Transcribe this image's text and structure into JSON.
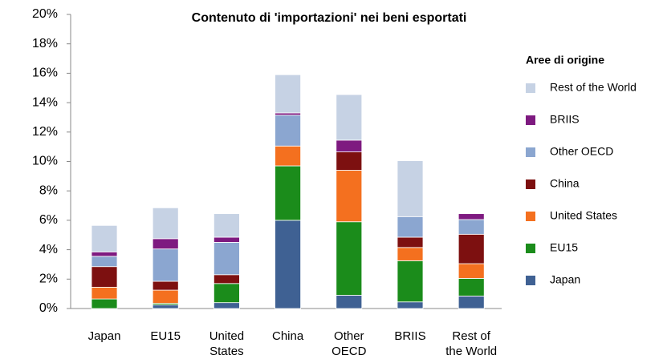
{
  "chart_data": {
    "type": "stacked_bar",
    "title": "Contenuto di 'importazioni' nei beni esportati",
    "legend_title": "Aree di origine",
    "categories": [
      "Japan",
      "EU15",
      "United States",
      "China",
      "Other OECD",
      "BRIIS",
      "Rest of the World"
    ],
    "series": [
      {
        "name": "Japan",
        "color": "#3f6193",
        "values": [
          0,
          0.25,
          0.4,
          6.0,
          0.9,
          0.45,
          0.85
        ]
      },
      {
        "name": "EU15",
        "color": "#1b8c1b",
        "values": [
          0.65,
          0.1,
          1.3,
          3.7,
          5.0,
          2.8,
          1.2
        ]
      },
      {
        "name": "United States",
        "color": "#f4701f",
        "values": [
          0.8,
          0.9,
          0,
          1.35,
          3.5,
          0.9,
          1.0
        ]
      },
      {
        "name": "China",
        "color": "#7d1010",
        "values": [
          1.4,
          0.6,
          0.6,
          0,
          1.25,
          0.7,
          2.0
        ]
      },
      {
        "name": "Other OECD",
        "color": "#8ba6d0",
        "values": [
          0.7,
          2.2,
          2.2,
          2.1,
          0,
          1.4,
          1.0
        ]
      },
      {
        "name": "BRIIS",
        "color": "#7e1a80",
        "values": [
          0.3,
          0.7,
          0.35,
          0.15,
          0.8,
          0,
          0.4
        ]
      },
      {
        "name": "Rest of the World",
        "color": "#c6d2e4",
        "values": [
          1.8,
          2.1,
          1.6,
          2.6,
          3.1,
          3.8,
          0
        ]
      }
    ],
    "ylim": [
      0,
      20
    ],
    "yticks": [
      {
        "value": 0,
        "label": "0%"
      },
      {
        "value": 2,
        "label": "2%"
      },
      {
        "value": 4,
        "label": "4%"
      },
      {
        "value": 6,
        "label": "6%"
      },
      {
        "value": 8,
        "label": "8%"
      },
      {
        "value": 10,
        "label": "10%"
      },
      {
        "value": 12,
        "label": "12%"
      },
      {
        "value": 14,
        "label": "14%"
      },
      {
        "value": 16,
        "label": "16%"
      },
      {
        "value": 18,
        "label": "18%"
      },
      {
        "value": 20,
        "label": "20%"
      }
    ],
    "legend_position": "right"
  }
}
